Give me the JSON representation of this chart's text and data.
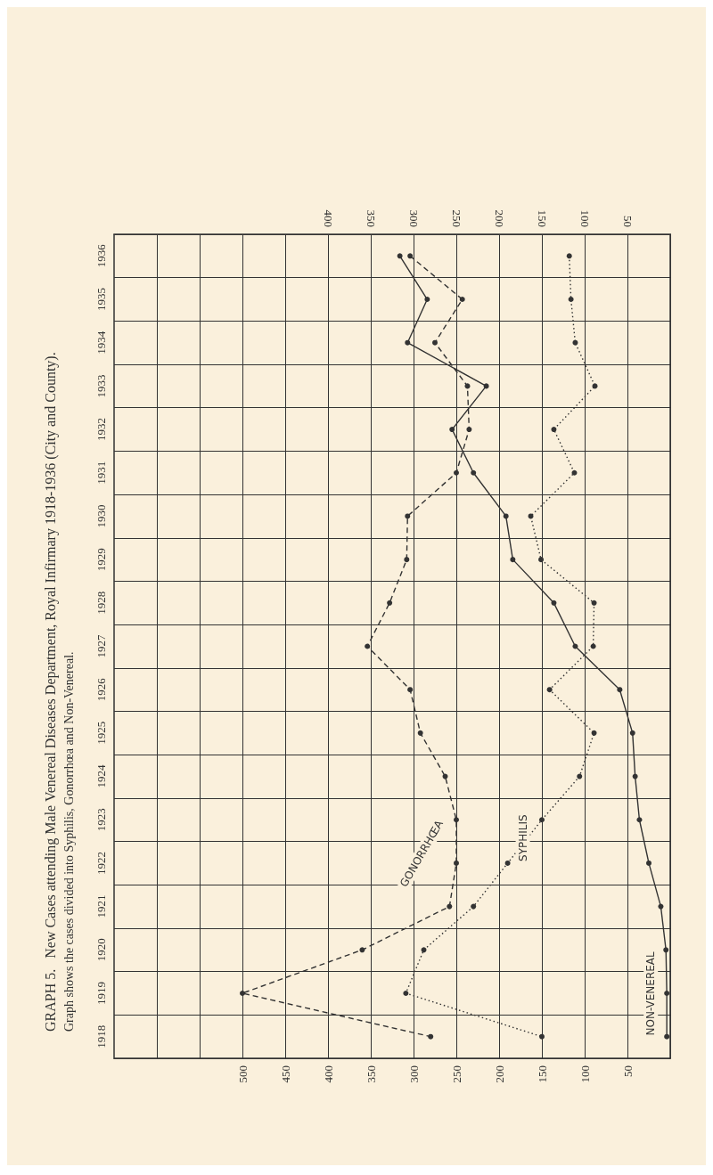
{
  "chart_data": {
    "type": "line",
    "title": "GRAPH 5.   New Cases attending Male Venereal Diseases Department, Royal Infirmary 1918-1936 (City and County).",
    "subtitle": "Graph shows the cases divided into Syphilis, Gonorrhœa and Non-Venereal.",
    "orientation": "horizontal",
    "categories": [
      "1936",
      "1935",
      "1934",
      "1933",
      "1932",
      "1931",
      "1930",
      "1929",
      "1928",
      "1927",
      "1926",
      "1925",
      "1924",
      "1923",
      "1922",
      "1921",
      "1920",
      "1919",
      "1918"
    ],
    "series": [
      {
        "name": "GONORRHŒA",
        "color": "#333333",
        "line_style": "dashed",
        "values": [
          304,
          243,
          275,
          237,
          235,
          250,
          307,
          308,
          328,
          354,
          304,
          292,
          263,
          250,
          250,
          258,
          360,
          500,
          280
        ]
      },
      {
        "name": "SYPHILIS",
        "color": "#333333",
        "line_style": "dotted",
        "values": [
          118,
          116,
          111,
          88,
          136,
          112,
          163,
          151,
          89,
          90,
          141,
          89,
          106,
          150,
          190,
          230,
          288,
          309,
          150
        ]
      },
      {
        "name": "NON-VENEREAL",
        "color": "#333333",
        "line_style": "solid",
        "values": [
          316,
          284,
          307,
          215,
          255,
          230,
          192,
          184,
          136,
          111,
          59,
          44,
          41,
          36,
          25,
          11,
          5,
          4,
          4
        ]
      }
    ],
    "xlim": [
      650,
      0
    ],
    "xticks": [
      {
        "value": 600,
        "label": null
      },
      {
        "value": 550,
        "label": null
      },
      500,
      450,
      400,
      350,
      300,
      250,
      200,
      150,
      100,
      50
    ],
    "x2lim": [
      650,
      0
    ],
    "x2ticks": [
      400,
      350,
      300,
      250,
      200,
      150,
      100,
      50
    ],
    "grid": true,
    "legend": false,
    "marker": "circle"
  }
}
